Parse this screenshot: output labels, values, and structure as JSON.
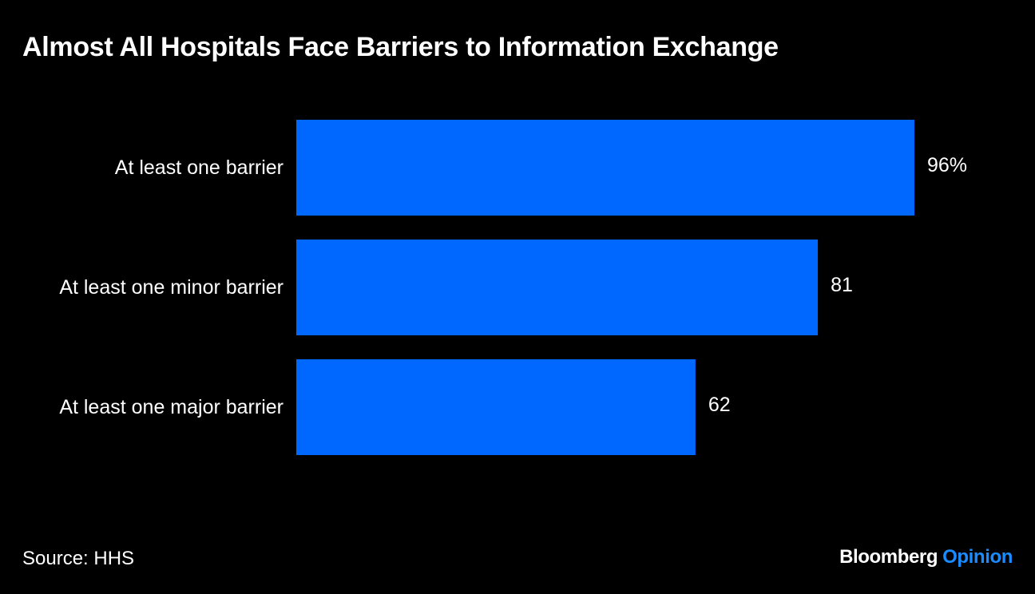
{
  "chart_data": {
    "type": "bar",
    "orientation": "horizontal",
    "title": "Almost All Hospitals Face Barriers to Information Exchange",
    "categories": [
      "At least one barrier",
      "At least one minor barrier",
      "At least one major barrier"
    ],
    "values": [
      96,
      81,
      62
    ],
    "data_labels": [
      "96%",
      "81",
      "62"
    ],
    "xlim": [
      0,
      100
    ],
    "grid": false,
    "legend": "none",
    "bar_color": "#0068ff"
  },
  "footer": {
    "source": "Source: HHS",
    "brand_name": "Bloomberg",
    "brand_accent": "Opinion",
    "brand_accent_color": "#1a8cff"
  },
  "colors": {
    "background": "#000000",
    "text": "#ffffff"
  }
}
